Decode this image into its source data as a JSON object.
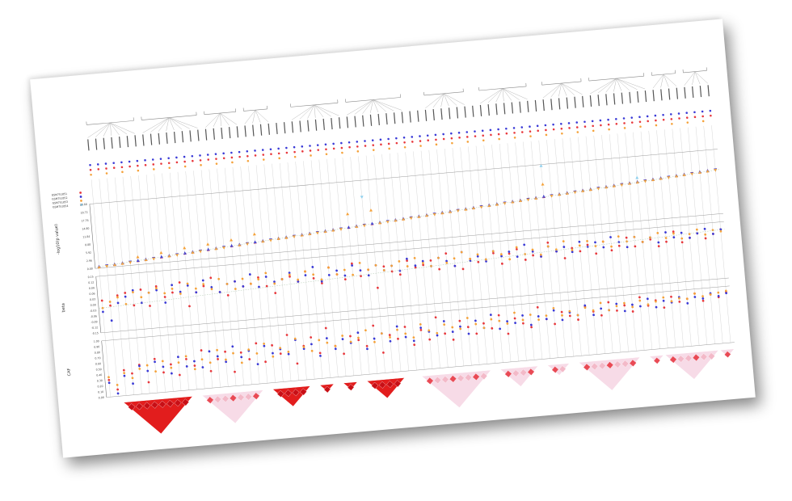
{
  "page": {
    "header": "",
    "legend_keys": [
      "GSM751851",
      "GSM751852",
      "GSM751853",
      "GSM751854"
    ]
  },
  "colors": {
    "series_red": "#e8383d",
    "series_blue": "#3a3ad6",
    "series_orange": "#f5a23a",
    "series_cyan": "#8fd0ee",
    "ld_strong": "#e21d1d",
    "ld_weak": "#f7dbe7",
    "grid": "#cfcfcf"
  },
  "chart_data": [
    {
      "type": "scatter",
      "panel": "score",
      "ylabel": "-log10(p value)",
      "yticks": [
        "0.00",
        "2.96",
        "5.92",
        "8.88",
        "11.84",
        "14.80",
        "17.76",
        "20.72",
        "23.68"
      ],
      "ylim": [
        0,
        23.68
      ],
      "marker": "triangle",
      "series": [
        {
          "color": "#e8383d",
          "values": [
            0.4,
            0.6,
            0.8,
            1.0,
            1.2,
            1.4,
            1.6,
            1.8,
            2.0,
            2.2,
            2.4,
            2.6,
            2.8,
            3.0,
            3.2,
            3.4,
            3.6,
            3.8,
            4.0,
            4.2,
            4.4,
            4.6,
            4.8,
            5.0,
            5.2,
            5.4,
            5.6,
            5.8,
            6.0,
            6.2,
            6.4,
            6.6,
            6.8,
            7.0,
            7.2,
            7.4,
            7.6,
            7.8,
            8.0,
            8.2,
            8.4,
            8.6,
            8.8,
            9.0,
            9.2,
            9.4,
            9.6,
            9.8,
            10.0,
            10.2,
            10.4,
            10.6,
            10.8,
            11.0,
            11.2,
            11.4,
            11.6,
            11.8,
            12.0,
            12.2,
            12.4,
            12.6,
            12.8,
            13.0,
            13.2,
            13.4,
            13.6,
            13.8,
            14.0,
            14.2,
            14.4,
            14.6,
            14.8,
            15.0,
            15.2,
            15.4,
            15.6,
            15.8,
            16.0,
            16.2
          ]
        },
        {
          "color": "#3a3ad6",
          "values": [
            0.5,
            0.7,
            0.9,
            1.1,
            1.3,
            1.5,
            1.7,
            1.9,
            2.1,
            2.3,
            2.5,
            2.7,
            2.9,
            3.1,
            3.3,
            3.5,
            3.7,
            3.9,
            4.1,
            4.3,
            4.5,
            4.7,
            4.9,
            5.1,
            5.3,
            5.5,
            5.7,
            5.9,
            6.1,
            6.3,
            6.5,
            6.7,
            6.9,
            7.1,
            7.3,
            7.5,
            7.7,
            7.9,
            8.1,
            8.3,
            8.5,
            8.7,
            8.9,
            9.1,
            9.3,
            9.5,
            9.7,
            9.9,
            10.1,
            10.3,
            10.5,
            10.7,
            10.9,
            11.1,
            11.3,
            11.5,
            11.7,
            11.9,
            12.1,
            12.3,
            12.5,
            12.7,
            12.9,
            13.1,
            13.3,
            13.5,
            13.7,
            13.9,
            14.1,
            14.3,
            14.5,
            14.7,
            14.9,
            15.1,
            15.3,
            15.5,
            15.7,
            15.9,
            16.1,
            16.3
          ]
        },
        {
          "color": "#f5a23a",
          "values": [
            0.3,
            0.5,
            0.7,
            0.9,
            1.1,
            2.8,
            1.5,
            1.7,
            3.6,
            2.1,
            2.3,
            4.6,
            2.7,
            2.9,
            5.2,
            3.3,
            3.5,
            6.0,
            3.9,
            4.1,
            7.4,
            4.5,
            4.7,
            5.0,
            5.1,
            5.3,
            5.5,
            5.7,
            5.9,
            6.1,
            6.3,
            6.5,
            11.8,
            6.9,
            7.1,
            12.4,
            7.5,
            7.7,
            7.9,
            8.1,
            8.3,
            8.5,
            8.7,
            8.9,
            9.1,
            9.3,
            9.5,
            9.7,
            9.9,
            10.1,
            10.3,
            10.5,
            10.7,
            10.9,
            11.1,
            11.3,
            11.5,
            16.4,
            11.9,
            12.1,
            12.3,
            12.5,
            12.7,
            12.9,
            13.1,
            13.3,
            13.5,
            13.7,
            13.9,
            14.1,
            14.3,
            14.5,
            14.7,
            14.9,
            15.1,
            15.3,
            15.5,
            15.7,
            15.9,
            16.1
          ]
        },
        {
          "color": "#8fd0ee",
          "values": [
            null,
            null,
            null,
            null,
            null,
            null,
            null,
            null,
            null,
            null,
            null,
            null,
            null,
            null,
            null,
            null,
            null,
            null,
            null,
            null,
            null,
            null,
            null,
            null,
            null,
            null,
            null,
            null,
            null,
            null,
            null,
            null,
            null,
            null,
            17.6,
            null,
            null,
            null,
            null,
            null,
            null,
            null,
            null,
            null,
            null,
            null,
            null,
            null,
            null,
            null,
            null,
            null,
            null,
            null,
            null,
            null,
            null,
            23.2,
            null,
            null,
            null,
            null,
            null,
            null,
            null,
            null,
            null,
            null,
            null,
            15.8,
            null,
            null,
            null,
            null,
            null,
            null,
            null,
            null,
            null,
            null
          ]
        }
      ]
    },
    {
      "type": "scatter",
      "panel": "beta",
      "ylabel": "beta",
      "yticks": [
        "-0.15",
        "-0.12",
        "-0.09",
        "-0.06",
        "-0.03",
        "0.00",
        "0.03",
        "0.06",
        "0.09",
        "0.12",
        "0.15"
      ],
      "ylim": [
        -0.15,
        0.15
      ],
      "marker": "circle",
      "series": [
        {
          "color": "#e8383d",
          "values": [
            0.02,
            -0.01,
            0.04,
            0.05,
            -0.02,
            0.06,
            -0.03,
            0.07,
            0.01,
            0.03,
            0.08,
            -0.05,
            0.02,
            0.05,
            0.09,
            0.01,
            -0.01,
            0.06,
            0.03,
            0.04,
            0.07,
            0.02,
            -0.02,
            0.05,
            0.06,
            0.03,
            0.08,
            0.04,
            0.01,
            0.09,
            0.05,
            0.02,
            0.1,
            0.03,
            0.06,
            -0.04,
            0.07,
            0.04,
            0.02,
            0.09,
            0.05,
            0.06,
            0.08,
            0.03,
            0.11,
            0.04,
            0.02,
            0.07,
            0.05,
            0.06,
            0.09,
            0.03,
            0.08,
            0.1,
            0.04,
            0.06,
            0.05,
            0.12,
            0.07,
            0.03,
            0.08,
            0.06,
            0.09,
            0.04,
            0.1,
            0.05,
            0.07,
            0.11,
            0.06,
            0.08,
            0.09,
            0.05,
            0.07,
            0.12,
            0.06,
            0.08,
            0.1,
            0.07,
            0.09,
            0.11
          ]
        },
        {
          "color": "#3a3ad6",
          "values": [
            -0.04,
            -0.09,
            0.0,
            0.03,
            0.06,
            -0.01,
            0.04,
            0.05,
            -0.02,
            0.07,
            0.03,
            0.06,
            0.02,
            0.08,
            0.04,
            0.01,
            0.05,
            0.06,
            0.03,
            0.09,
            0.02,
            0.07,
            0.04,
            0.05,
            0.08,
            0.03,
            0.06,
            0.1,
            0.02,
            0.05,
            0.07,
            0.04,
            0.09,
            0.06,
            0.03,
            0.08,
            0.05,
            0.07,
            0.04,
            0.1,
            0.06,
            0.08,
            0.05,
            0.09,
            0.07,
            0.04,
            0.11,
            0.06,
            0.08,
            0.05,
            0.1,
            0.07,
            0.09,
            0.06,
            0.12,
            0.08,
            0.05,
            0.1,
            0.07,
            0.09,
            0.06,
            0.11,
            0.08,
            0.1,
            0.07,
            0.12,
            0.09,
            0.06,
            0.11,
            0.08,
            0.1,
            0.07,
            0.12,
            0.09,
            0.11,
            0.08,
            0.1,
            0.12,
            0.09,
            0.11
          ]
        },
        {
          "color": "#f5a23a",
          "values": [
            -0.02,
            0.01,
            0.03,
            -0.01,
            0.05,
            0.02,
            0.04,
            0.06,
            0.03,
            0.05,
            0.02,
            0.07,
            0.04,
            0.06,
            0.03,
            0.08,
            0.05,
            0.02,
            0.07,
            0.04,
            0.06,
            0.09,
            0.03,
            0.05,
            0.07,
            0.04,
            0.08,
            0.06,
            0.03,
            0.09,
            0.05,
            0.07,
            0.04,
            0.1,
            0.06,
            0.08,
            0.05,
            0.07,
            0.09,
            0.06,
            0.1,
            0.07,
            0.05,
            0.09,
            0.06,
            0.08,
            0.11,
            0.07,
            0.09,
            0.06,
            0.1,
            0.08,
            0.05,
            0.11,
            0.07,
            0.09,
            0.06,
            0.1,
            0.08,
            0.12,
            0.07,
            0.09,
            0.11,
            0.08,
            0.1,
            0.07,
            0.12,
            0.09,
            0.11,
            0.08,
            0.1,
            0.12,
            0.09,
            0.11,
            0.08,
            0.1,
            0.12,
            0.09,
            0.11,
            0.1
          ]
        }
      ]
    },
    {
      "type": "scatter",
      "panel": "caf",
      "ylabel": "CAF",
      "yticks": [
        "0.00",
        "0.10",
        "0.20",
        "0.30",
        "0.40",
        "0.50",
        "0.60",
        "0.70",
        "0.80",
        "0.90",
        "1.00"
      ],
      "ylim": [
        0,
        1
      ],
      "marker": "circle",
      "series": [
        {
          "color": "#e8383d",
          "values": [
            0.3,
            0.12,
            0.45,
            0.38,
            0.52,
            0.2,
            0.6,
            0.35,
            0.48,
            0.28,
            0.55,
            0.42,
            0.68,
            0.3,
            0.5,
            0.62,
            0.25,
            0.58,
            0.45,
            0.72,
            0.38,
            0.66,
            0.5,
            0.82,
            0.3,
            0.6,
            0.74,
            0.45,
            0.88,
            0.55,
            0.4,
            0.7,
            0.62,
            0.5,
            0.85,
            0.36,
            0.66,
            0.58,
            0.78,
            0.45,
            0.7,
            0.52,
            0.9,
            0.6,
            0.48,
            0.8,
            0.68,
            0.55,
            0.72,
            0.62,
            0.84,
            0.5,
            0.76,
            0.66,
            0.58,
            0.92,
            0.7,
            0.6,
            0.8,
            0.72,
            0.64,
            0.86,
            0.76,
            0.68,
            0.9,
            0.74,
            0.82,
            0.7,
            0.94,
            0.78,
            0.86,
            0.72,
            0.9,
            0.8,
            0.84,
            0.92,
            0.78,
            0.88,
            0.82,
            0.9
          ]
        },
        {
          "color": "#3a3ad6",
          "values": [
            0.25,
            0.05,
            0.35,
            0.2,
            0.5,
            0.4,
            0.55,
            0.45,
            0.32,
            0.6,
            0.42,
            0.5,
            0.38,
            0.65,
            0.55,
            0.44,
            0.7,
            0.5,
            0.6,
            0.35,
            0.66,
            0.52,
            0.58,
            0.48,
            0.72,
            0.55,
            0.62,
            0.4,
            0.7,
            0.5,
            0.66,
            0.58,
            0.75,
            0.45,
            0.62,
            0.7,
            0.55,
            0.8,
            0.6,
            0.52,
            0.74,
            0.66,
            0.58,
            0.82,
            0.62,
            0.7,
            0.56,
            0.78,
            0.64,
            0.86,
            0.6,
            0.72,
            0.68,
            0.8,
            0.62,
            0.76,
            0.7,
            0.84,
            0.66,
            0.78,
            0.72,
            0.88,
            0.7,
            0.8,
            0.76,
            0.86,
            0.72,
            0.82,
            0.78,
            0.9,
            0.74,
            0.84,
            0.8,
            0.88,
            0.76,
            0.86,
            0.82,
            0.9,
            0.84,
            0.88
          ]
        },
        {
          "color": "#f5a23a",
          "values": [
            0.35,
            0.2,
            0.4,
            0.3,
            0.45,
            0.5,
            0.38,
            0.55,
            0.42,
            0.5,
            0.6,
            0.36,
            0.52,
            0.45,
            0.66,
            0.48,
            0.58,
            0.4,
            0.62,
            0.54,
            0.7,
            0.46,
            0.6,
            0.52,
            0.74,
            0.58,
            0.5,
            0.68,
            0.62,
            0.55,
            0.72,
            0.6,
            0.66,
            0.78,
            0.56,
            0.7,
            0.62,
            0.74,
            0.66,
            0.58,
            0.8,
            0.68,
            0.62,
            0.76,
            0.7,
            0.66,
            0.84,
            0.72,
            0.64,
            0.78,
            0.74,
            0.68,
            0.86,
            0.72,
            0.8,
            0.7,
            0.76,
            0.88,
            0.74,
            0.8,
            0.72,
            0.84,
            0.78,
            0.9,
            0.76,
            0.82,
            0.86,
            0.78,
            0.88,
            0.8,
            0.84,
            0.9,
            0.82,
            0.86,
            0.84,
            0.92,
            0.86,
            0.88,
            0.9,
            0.92
          ]
        }
      ]
    }
  ]
}
